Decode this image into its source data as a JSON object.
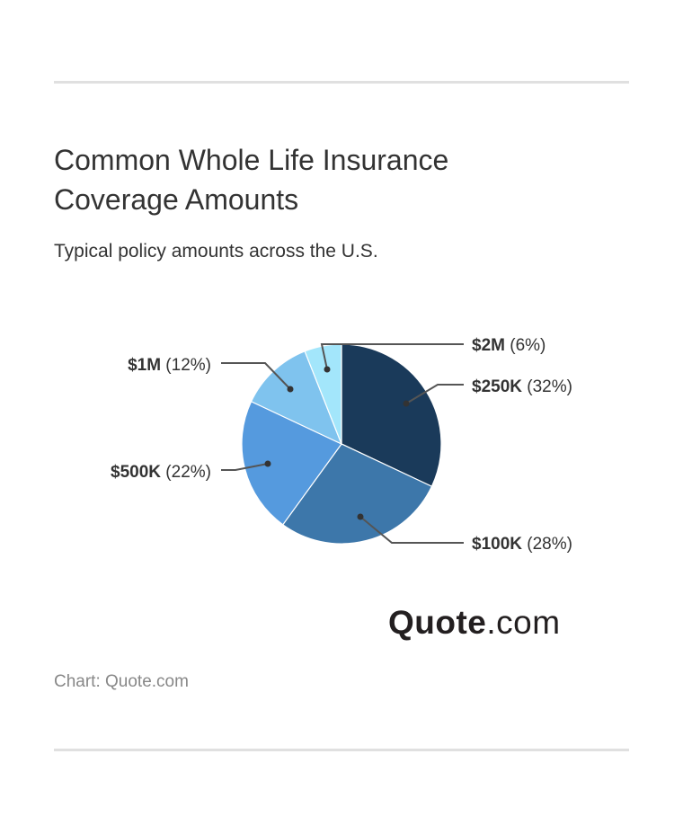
{
  "chart_data": {
    "type": "pie",
    "title": "Common Whole Life Insurance Coverage Amounts",
    "subtitle": "Typical policy amounts across the U.S.",
    "source": "Chart: Quote.com",
    "slices": [
      {
        "label": "$250K",
        "value": 32,
        "pct_label": "(32%)",
        "color": "#1a3a5a"
      },
      {
        "label": "$100K",
        "value": 28,
        "pct_label": "(28%)",
        "color": "#3d77aa"
      },
      {
        "label": "$500K",
        "value": 22,
        "pct_label": "(22%)",
        "color": "#559ade"
      },
      {
        "label": "$1M",
        "value": 12,
        "pct_label": "(12%)",
        "color": "#7fc3ee"
      },
      {
        "label": "$2M",
        "value": 6,
        "pct_label": "(6%)",
        "color": "#a3e6fb"
      }
    ]
  },
  "logo": {
    "bold": "Quote",
    "rest": ".com"
  }
}
